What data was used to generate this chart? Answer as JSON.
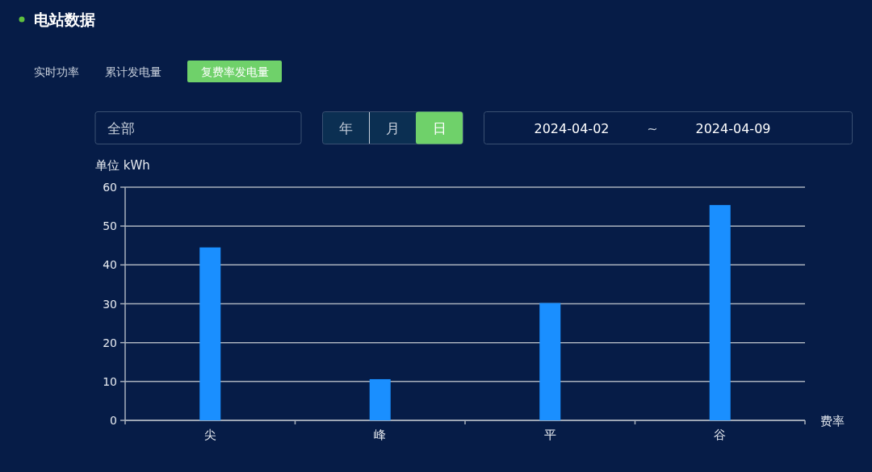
{
  "chart_data": {
    "type": "bar",
    "title": "电站数据",
    "annotations": [
      "实时功率",
      "累计发电量",
      "复费率发电量",
      "全部",
      "年",
      "月",
      "日",
      "2024-04-02",
      "~",
      "2024-04-09"
    ],
    "categories": [
      "尖",
      "峰",
      "平",
      "谷"
    ],
    "values": [
      44.5,
      10.6,
      30.2,
      55.4
    ],
    "color": "#1a8fff",
    "xlabel": "费率",
    "ylabel": "单位 kWh",
    "ylim": [
      0,
      60
    ],
    "yticks": [
      0,
      10,
      20,
      30,
      40,
      50,
      60
    ],
    "grid": "y"
  }
}
